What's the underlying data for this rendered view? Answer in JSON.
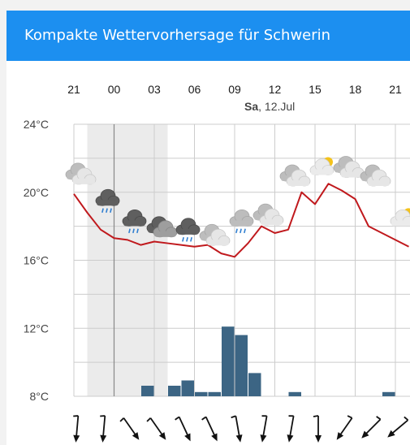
{
  "header": {
    "title": "Kompakte Wettervorhersage für Schwerin"
  },
  "colors": {
    "header_bg": "#1c8ff0",
    "temperature_line": "#c0191d",
    "precipitation_bar": "#3c6584",
    "night_shade": "#ebebeb",
    "grid": "#cccccc"
  },
  "date_label": {
    "day": "Sa",
    "rest": ", 12.Jul"
  },
  "chart_data": {
    "type": "line",
    "hour_labels": [
      "21",
      "00",
      "03",
      "06",
      "09",
      "12",
      "15",
      "18",
      "21"
    ],
    "y_tick_labels": [
      "24°C",
      "20°C",
      "16°C",
      "12°C",
      "8°C"
    ],
    "ylim": [
      8,
      24
    ],
    "temperature_series": {
      "x_hours": [
        21,
        22,
        23,
        24,
        25,
        26,
        27,
        28,
        29,
        30,
        31,
        32,
        33,
        34,
        35,
        36,
        37,
        38,
        39,
        40,
        41,
        42,
        43,
        44,
        45,
        46
      ],
      "values": [
        19.9,
        18.8,
        17.8,
        17.3,
        17.2,
        16.9,
        17.1,
        17.0,
        16.9,
        16.8,
        16.9,
        16.4,
        16.2,
        17.0,
        18.0,
        17.6,
        17.8,
        20.0,
        19.3,
        20.5,
        20.1,
        19.6,
        18.0,
        17.6,
        17.2,
        16.8
      ]
    },
    "precipitation_series": {
      "x_hours": [
        24,
        25,
        26,
        27,
        28,
        29,
        30,
        31,
        32,
        33,
        34,
        35,
        36,
        37,
        38,
        39,
        40,
        41,
        42,
        43,
        44,
        45
      ],
      "values": [
        0,
        0,
        0.5,
        0,
        0.5,
        0.75,
        0.2,
        0.2,
        3.3,
        2.9,
        1.1,
        0,
        0,
        0.2,
        0,
        0,
        0,
        0,
        0,
        0,
        0.2,
        0
      ]
    },
    "weather_icons": [
      {
        "hour": 21,
        "icon": "cloudy-icon",
        "temp": 20.9
      },
      {
        "hour": 23,
        "icon": "rain-cloud-dark-icon",
        "temp": 19.5
      },
      {
        "hour": 25,
        "icon": "rain-cloud-dark-icon",
        "temp": 18.3
      },
      {
        "hour": 27,
        "icon": "overcast-dark-icon",
        "temp": 17.8
      },
      {
        "hour": 29,
        "icon": "rain-cloud-dark-icon",
        "temp": 17.8
      },
      {
        "hour": 31,
        "icon": "cloudy-icon",
        "temp": 17.3
      },
      {
        "hour": 33,
        "icon": "rain-cloud-light-icon",
        "temp": 18.3
      },
      {
        "hour": 35,
        "icon": "cloudy-icon",
        "temp": 18.5
      },
      {
        "hour": 37,
        "icon": "cloudy-icon",
        "temp": 20.8
      },
      {
        "hour": 39,
        "icon": "partly-sunny-icon",
        "temp": 21.3
      },
      {
        "hour": 41,
        "icon": "cloudy-icon",
        "temp": 21.3
      },
      {
        "hour": 43,
        "icon": "cloudy-icon",
        "temp": 20.8
      },
      {
        "hour": 45,
        "icon": "partly-sunny-icon",
        "temp": 18.3
      }
    ],
    "wind_arrows": [
      {
        "hour": 21,
        "direction_deg": 5
      },
      {
        "hour": 23,
        "direction_deg": 5
      },
      {
        "hour": 25,
        "direction_deg": -35
      },
      {
        "hour": 27,
        "direction_deg": -35
      },
      {
        "hour": 29,
        "direction_deg": -25
      },
      {
        "hour": 31,
        "direction_deg": -25
      },
      {
        "hour": 33,
        "direction_deg": -10
      },
      {
        "hour": 35,
        "direction_deg": 10
      },
      {
        "hour": 37,
        "direction_deg": 10
      },
      {
        "hour": 39,
        "direction_deg": 0
      },
      {
        "hour": 41,
        "direction_deg": 35
      },
      {
        "hour": 43,
        "direction_deg": 45
      },
      {
        "hour": 45,
        "direction_deg": 50
      }
    ],
    "night_range_hours": [
      22,
      28
    ],
    "grid": true
  }
}
